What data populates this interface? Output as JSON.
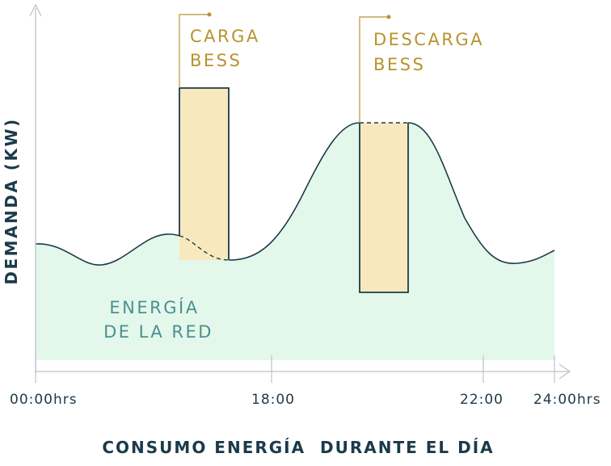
{
  "y_axis_label": "DEMANDA (KW)",
  "x_axis_title": "CONSUMO ENERGÍA  DURANTE EL DÍA",
  "x_ticks": [
    "00:00hrs",
    "18:00",
    "22:00",
    "24:00hrs"
  ],
  "annotations": {
    "charge": [
      "CARGA",
      "BESS"
    ],
    "discharge": [
      "DESCARGA",
      "BESS"
    ],
    "grid": [
      "ENERGÍA",
      "DE LA RED"
    ]
  },
  "colors": {
    "grid_fill": "#e3f8ea",
    "bess_fill": "#f8e8bd",
    "line": "#1c3a4a",
    "label_gold": "#b8932e",
    "label_teal": "#4c8f92",
    "axis": "#b9c4cc"
  }
}
